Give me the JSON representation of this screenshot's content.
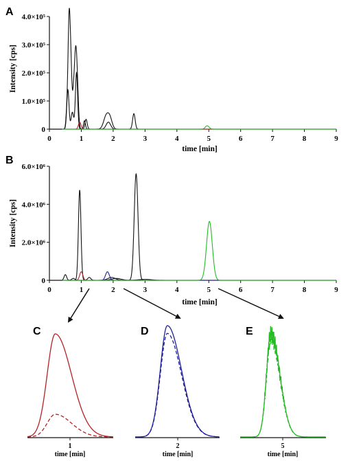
{
  "colors": {
    "black": "#111111",
    "red": "#b22222",
    "blue": "#1f1f99",
    "green": "#22bb22"
  },
  "chart_data": [
    {
      "panel": "A",
      "type": "line",
      "xlabel": "time [min]",
      "ylabel": "Intensity [cps]",
      "xlim": [
        0,
        9
      ],
      "ylim": [
        0,
        400000
      ],
      "xticks": [
        "0",
        "1",
        "2",
        "3",
        "4",
        "5",
        "6",
        "7",
        "8",
        "9"
      ],
      "yticks": [
        {
          "v": 0,
          "label": "0"
        },
        {
          "v": 100000,
          "label": "1.0×10⁵"
        },
        {
          "v": 200000,
          "label": "2.0×10⁵"
        },
        {
          "v": 300000,
          "label": "3.0×10⁵"
        },
        {
          "v": 400000,
          "label": "4.0×10⁵"
        }
      ],
      "series": [
        {
          "color": "black",
          "peaks": [
            [
              0.55,
              60000,
              0.03
            ],
            [
              0.62,
              400000,
              0.035
            ],
            [
              0.68,
              170000,
              0.03
            ],
            [
              0.75,
              90000,
              0.03
            ],
            [
              0.82,
              262000,
              0.04
            ],
            [
              0.88,
              110000,
              0.035
            ],
            [
              1.1,
              30000,
              0.03
            ],
            [
              1.78,
              45000,
              0.08
            ],
            [
              1.9,
              35000,
              0.07
            ],
            [
              2.65,
              55000,
              0.04
            ]
          ]
        },
        {
          "color": "black",
          "peaks": [
            [
              0.58,
              140000,
              0.035
            ],
            [
              0.72,
              60000,
              0.04
            ],
            [
              0.85,
              200000,
              0.035
            ],
            [
              1.15,
              35000,
              0.035
            ],
            [
              1.85,
              25000,
              0.07
            ]
          ]
        },
        {
          "color": "red",
          "peaks": [
            [
              0.95,
              25000,
              0.04
            ]
          ]
        },
        {
          "color": "green",
          "peaks": [
            [
              4.95,
              12000,
              0.06
            ]
          ]
        }
      ]
    },
    {
      "panel": "B",
      "type": "line",
      "xlabel": "time [min]",
      "ylabel": "Intensity [cps]",
      "xlim": [
        0,
        9
      ],
      "ylim": [
        0,
        6000000
      ],
      "xticks": [
        "0",
        "1",
        "2",
        "3",
        "4",
        "5",
        "6",
        "7",
        "8",
        "9"
      ],
      "yticks": [
        {
          "v": 0,
          "label": "0"
        },
        {
          "v": 2000000,
          "label": "2.0×10⁶"
        },
        {
          "v": 4000000,
          "label": "4.0×10⁶"
        },
        {
          "v": 6000000,
          "label": "6.0×10⁶"
        }
      ],
      "series": [
        {
          "color": "black",
          "peaks": [
            [
              0.5,
              300000,
              0.04
            ],
            [
              0.95,
              4750000,
              0.04
            ],
            [
              1.25,
              150000,
              0.05
            ],
            [
              1.95,
              150000,
              0.12
            ],
            [
              2.72,
              5600000,
              0.06
            ]
          ]
        },
        {
          "color": "black",
          "peaks": [
            [
              0.75,
              100000,
              0.05
            ],
            [
              2.1,
              100000,
              0.15
            ],
            [
              3.0,
              50000,
              0.2
            ]
          ]
        },
        {
          "color": "red",
          "peaks": [
            [
              1.0,
              450000,
              0.05
            ]
          ]
        },
        {
          "color": "blue",
          "peaks": [
            [
              1.82,
              450000,
              0.06
            ]
          ]
        },
        {
          "color": "green",
          "peaks": [
            [
              5.02,
              3100000,
              0.09
            ]
          ]
        }
      ]
    },
    {
      "panel": "C",
      "type": "line",
      "xlabel": "time [min]",
      "xticks": [
        "1"
      ],
      "series": [
        {
          "color": "red",
          "style": "solid",
          "peak": [
            1.0,
            1.0
          ]
        },
        {
          "color": "red",
          "style": "dashed",
          "peak": [
            1.0,
            0.22
          ]
        }
      ]
    },
    {
      "panel": "D",
      "type": "line",
      "xlabel": "time [min]",
      "xticks": [
        "2"
      ],
      "series": [
        {
          "color": "blue",
          "style": "solid",
          "peak": [
            1.82,
            1.0
          ]
        },
        {
          "color": "blue",
          "style": "dashed",
          "peak": [
            1.82,
            0.93
          ]
        }
      ]
    },
    {
      "panel": "E",
      "type": "line",
      "xlabel": "time [min]",
      "xticks": [
        "5"
      ],
      "series": [
        {
          "color": "green",
          "style": "solid",
          "peak": [
            5.02,
            1.0
          ]
        },
        {
          "color": "green",
          "style": "dashed",
          "peak": [
            5.02,
            0.95
          ]
        }
      ]
    }
  ]
}
